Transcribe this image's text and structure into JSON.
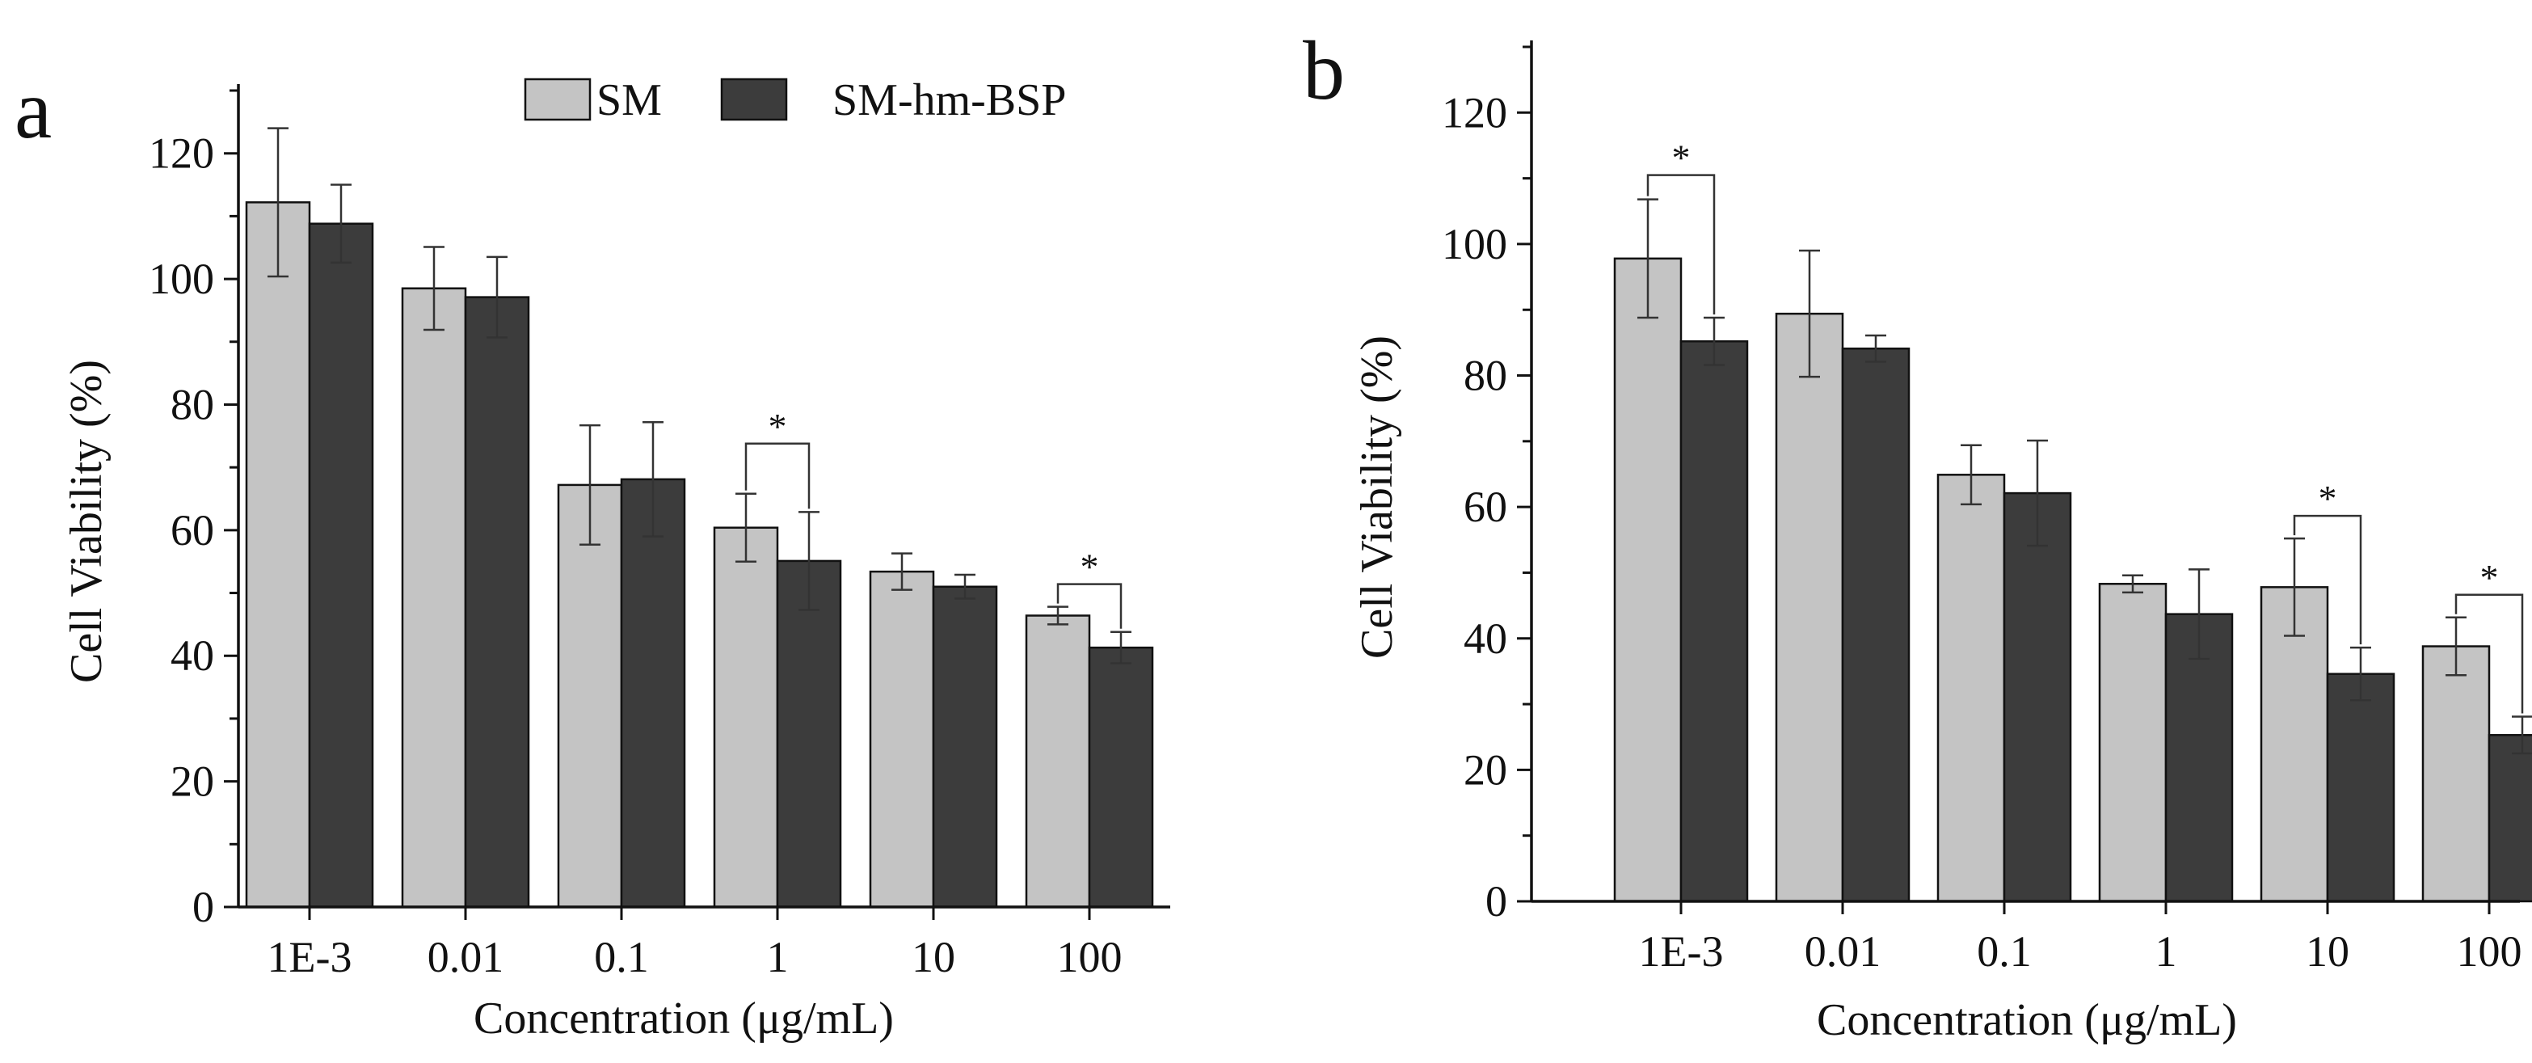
{
  "chart_data": [
    {
      "panel": "a",
      "type": "bar",
      "xlabel": "Concentration (μg/mL)",
      "ylabel": "Cell Viability (%)",
      "ylim": [
        0,
        130
      ],
      "yticks": [
        0,
        20,
        40,
        60,
        80,
        100,
        120
      ],
      "categories": [
        "1E-3",
        "0.01",
        "0.1",
        "1",
        "10",
        "100"
      ],
      "series": [
        {
          "name": "SM",
          "color": "#c4c4c4",
          "values": [
            112.2,
            98.5,
            67.2,
            60.4,
            53.4,
            46.4
          ],
          "errors": [
            11.8,
            6.6,
            9.5,
            5.4,
            2.9,
            1.4
          ]
        },
        {
          "name": "SM-hm-BSP",
          "color": "#3c3c3c",
          "values": [
            108.8,
            97.1,
            68.1,
            55.1,
            51.0,
            41.3
          ],
          "errors": [
            6.2,
            6.4,
            9.1,
            7.8,
            1.9,
            2.5
          ]
        }
      ],
      "significance": [
        {
          "category": "1",
          "label": "*"
        },
        {
          "category": "100",
          "label": "*"
        }
      ],
      "legend": {
        "entries": [
          "SM",
          "SM-hm-BSP"
        ],
        "placement": "top-center"
      }
    },
    {
      "panel": "b",
      "type": "bar",
      "xlabel": "Concentration (μg/mL)",
      "ylabel": "Cell Viability (%)",
      "ylim": [
        0,
        130
      ],
      "yticks": [
        0,
        20,
        40,
        60,
        80,
        100,
        120
      ],
      "categories": [
        "1E-3",
        "0.01",
        "0.1",
        "1",
        "10",
        "100"
      ],
      "series": [
        {
          "name": "SM",
          "color": "#c4c4c4",
          "values": [
            97.8,
            89.4,
            64.9,
            48.3,
            47.8,
            38.8
          ],
          "errors": [
            9.0,
            9.6,
            4.5,
            1.3,
            7.4,
            4.4
          ]
        },
        {
          "name": "SM-hm-BSP",
          "color": "#3c3c3c",
          "values": [
            85.2,
            84.1,
            62.1,
            43.7,
            34.6,
            25.3
          ],
          "errors": [
            3.6,
            2.0,
            8.0,
            6.8,
            4.0,
            2.8
          ]
        }
      ],
      "significance": [
        {
          "category": "1E-3",
          "label": "*"
        },
        {
          "category": "10",
          "label": "*"
        },
        {
          "category": "100",
          "label": "*"
        }
      ]
    }
  ]
}
